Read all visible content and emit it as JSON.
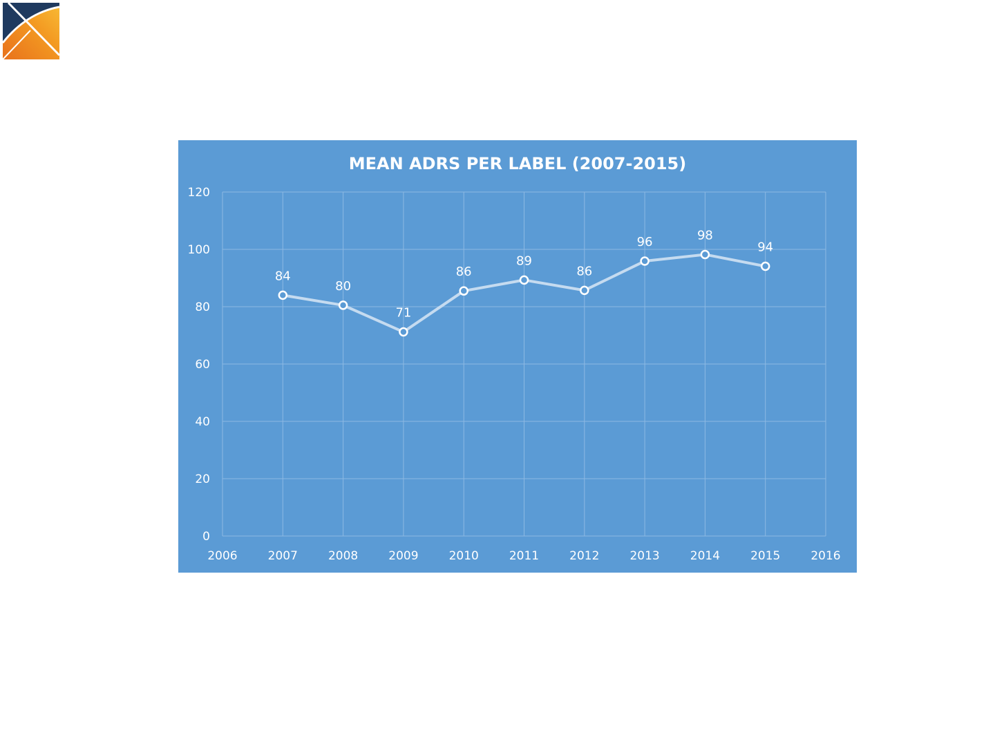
{
  "logo": {
    "icon": "x-logo-icon",
    "colors": {
      "navy": "#1f3a5f",
      "orange": "#f0901e",
      "gold": "#f7b42c"
    }
  },
  "chart_data": {
    "type": "line",
    "title": "MEAN ADRS PER LABEL (2007-2015)",
    "xlabel": "",
    "ylabel": "",
    "x": [
      2007,
      2008,
      2009,
      2010,
      2011,
      2012,
      2013,
      2014,
      2015
    ],
    "series": [
      {
        "values": [
          84,
          80.5,
          71.2,
          85.5,
          89.3,
          85.7,
          95.9,
          98.2,
          94.1
        ],
        "labels": [
          "84",
          "80",
          "71",
          "86",
          "89",
          "86",
          "96",
          "98",
          "94"
        ]
      }
    ],
    "xlim": [
      2006,
      2016
    ],
    "ylim": [
      0,
      120
    ],
    "xticks": [
      2006,
      2007,
      2008,
      2009,
      2010,
      2011,
      2012,
      2013,
      2014,
      2015,
      2016
    ],
    "yticks": [
      0,
      20,
      40,
      60,
      80,
      100,
      120
    ],
    "grid": true,
    "legend": "none",
    "colors": {
      "background": "#5b9bd5",
      "line": "#c5dbf0",
      "grid": "#8db9e3",
      "text": "#ffffff",
      "marker_fill": "#5b9bd5",
      "marker_stroke": "#ffffff"
    }
  }
}
